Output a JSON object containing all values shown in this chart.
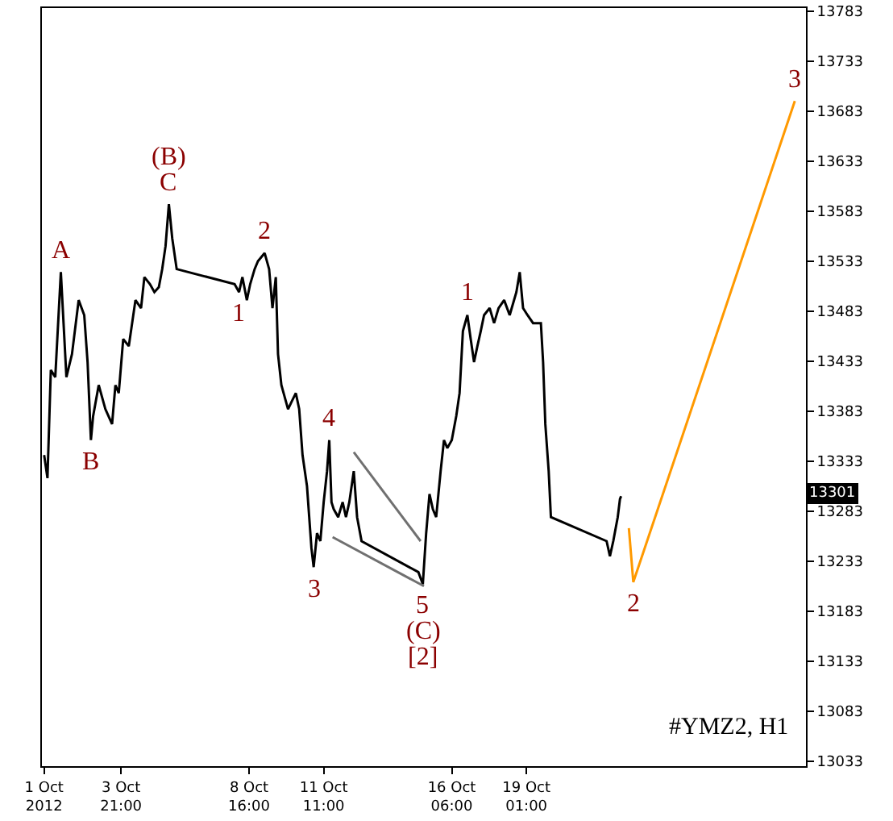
{
  "chart_data": {
    "type": "line",
    "xlim": [
      "2012-09-30T22:00",
      "2012-10-29T12:00"
    ],
    "ylim": [
      13028,
      13786
    ],
    "xticks": [
      {
        "value": "2012-10-01T00:00",
        "label": "1 Oct 2012"
      },
      {
        "value": "2012-10-03T21:00",
        "label": "3 Oct 21:00"
      },
      {
        "value": "2012-10-08T16:00",
        "label": "8 Oct 16:00"
      },
      {
        "value": "2012-10-11T11:00",
        "label": "11 Oct 11:00"
      },
      {
        "value": "2012-10-16T06:00",
        "label": "16 Oct 06:00"
      },
      {
        "value": "2012-10-19T01:00",
        "label": "19 Oct 01:00"
      }
    ],
    "yticks": [
      13033,
      13083,
      13133,
      13183,
      13233,
      13283,
      13333,
      13383,
      13433,
      13483,
      13533,
      13583,
      13633,
      13683,
      13733,
      13783
    ],
    "marker": "none",
    "line_style": "solid",
    "series": [
      {
        "color": "#000000",
        "x": [
          "2012-10-01T00:00",
          "2012-10-01T03:00",
          "2012-10-01T06:00",
          "2012-10-01T10:00",
          "2012-10-01T15:00",
          "2012-10-01T20:00",
          "2012-10-02T01:00",
          "2012-10-02T07:00",
          "2012-10-02T12:00",
          "2012-10-02T15:00",
          "2012-10-02T18:00",
          "2012-10-02T20:00",
          "2012-10-03T01:00",
          "2012-10-03T07:00",
          "2012-10-03T13:00",
          "2012-10-03T16:00",
          "2012-10-03T19:00",
          "2012-10-03T23:00",
          "2012-10-04T04:00",
          "2012-10-04T10:00",
          "2012-10-04T15:00",
          "2012-10-04T18:00",
          "2012-10-04T23:00",
          "2012-10-05T03:00",
          "2012-10-05T07:00",
          "2012-10-05T10:00",
          "2012-10-05T13:00",
          "2012-10-05T16:00",
          "2012-10-05T19:00",
          "2012-10-05T23:00",
          "2012-10-08T03:00",
          "2012-10-08T07:00",
          "2012-10-08T10:00",
          "2012-10-08T14:00",
          "2012-10-08T17:00",
          "2012-10-08T21:00",
          "2012-10-09T00:00",
          "2012-10-09T06:00",
          "2012-10-09T10:00",
          "2012-10-09T13:00",
          "2012-10-09T16:00",
          "2012-10-09T18:00",
          "2012-10-09T21:00",
          "2012-10-10T03:00",
          "2012-10-10T06:00",
          "2012-10-10T10:00",
          "2012-10-10T13:00",
          "2012-10-10T16:00",
          "2012-10-10T20:00",
          "2012-10-11T00:00",
          "2012-10-11T02:00",
          "2012-10-11T05:00",
          "2012-10-11T08:00",
          "2012-10-11T11:00",
          "2012-10-11T14:00",
          "2012-10-11T16:00",
          "2012-10-11T18:00",
          "2012-10-11T20:00",
          "2012-10-12T00:00",
          "2012-10-12T04:00",
          "2012-10-12T07:00",
          "2012-10-12T10:00",
          "2012-10-12T14:00",
          "2012-10-12T17:00",
          "2012-10-12T21:00",
          "2012-10-15T00:00",
          "2012-10-15T04:00",
          "2012-10-15T07:00",
          "2012-10-15T10:00",
          "2012-10-15T13:00",
          "2012-10-15T16:00",
          "2012-10-15T20:00",
          "2012-10-15T23:00",
          "2012-10-16T02:00",
          "2012-10-16T06:00",
          "2012-10-16T10:00",
          "2012-10-16T13:00",
          "2012-10-16T16:00",
          "2012-10-16T20:00",
          "2012-10-16T23:00",
          "2012-10-17T02:00",
          "2012-10-17T05:00",
          "2012-10-17T08:00",
          "2012-10-17T11:00",
          "2012-10-17T16:00",
          "2012-10-17T20:00",
          "2012-10-18T00:00",
          "2012-10-18T05:00",
          "2012-10-18T10:00",
          "2012-10-18T16:00",
          "2012-10-18T19:00",
          "2012-10-18T22:00",
          "2012-10-19T02:00",
          "2012-10-19T07:00",
          "2012-10-19T14:00",
          "2012-10-19T16:00",
          "2012-10-19T18:00",
          "2012-10-19T21:00",
          "2012-10-19T23:00",
          "2012-10-22T01:00",
          "2012-10-22T04:00",
          "2012-10-22T07:00",
          "2012-10-22T11:00",
          "2012-10-22T13:00",
          "2012-10-22T14:00"
        ],
        "values": [
          13339,
          13316,
          13424,
          13417,
          13522,
          13417,
          13440,
          13494,
          13479,
          13432,
          13354,
          13378,
          13409,
          13385,
          13370,
          13409,
          13401,
          13455,
          13448,
          13494,
          13486,
          13517,
          13510,
          13502,
          13507,
          13525,
          13548,
          13590,
          13556,
          13525,
          13510,
          13502,
          13517,
          13494,
          13510,
          13525,
          13533,
          13541,
          13525,
          13486,
          13517,
          13440,
          13409,
          13385,
          13392,
          13401,
          13385,
          13339,
          13308,
          13246,
          13227,
          13261,
          13253,
          13292,
          13323,
          13354,
          13292,
          13285,
          13277,
          13292,
          13277,
          13292,
          13323,
          13277,
          13253,
          13222,
          13210,
          13261,
          13300,
          13285,
          13277,
          13323,
          13354,
          13346,
          13354,
          13378,
          13401,
          13463,
          13479,
          13455,
          13432,
          13448,
          13463,
          13479,
          13486,
          13471,
          13486,
          13494,
          13479,
          13502,
          13522,
          13486,
          13479,
          13471,
          13471,
          13432,
          13370,
          13323,
          13277,
          13253,
          13238,
          13253,
          13277,
          13295,
          13298
        ]
      },
      {
        "color": "#ff9900",
        "x": [
          "2012-10-22T21:00",
          "2012-10-23T01:00",
          "2012-10-29T02:00"
        ],
        "values": [
          13266,
          13212,
          13693
        ]
      },
      {
        "color": "#707070",
        "x": [
          "2012-10-11T19:00",
          "2012-10-15T05:00"
        ],
        "values": [
          13257,
          13208
        ]
      },
      {
        "color": "#707070",
        "x": [
          "2012-10-12T14:00",
          "2012-10-15T02:00"
        ],
        "values": [
          13342,
          13253
        ]
      }
    ],
    "annotations": [
      {
        "text": "A",
        "x": "2012-10-01T15:00",
        "y": 13522
      },
      {
        "text": "B",
        "x": "2012-10-02T18:00",
        "y": 13354
      },
      {
        "text": "C",
        "x": "2012-10-05T16:00",
        "y": 13590
      },
      {
        "text": "(B)",
        "x": "2012-10-05T16:00",
        "y": 13590
      },
      {
        "text": "2",
        "x": "2012-10-09T06:00",
        "y": 13541
      },
      {
        "text": "1",
        "x": "2012-10-08T07:00",
        "y": 13502
      },
      {
        "text": "1",
        "x": "2012-10-16T20:00",
        "y": 13479
      },
      {
        "text": "4",
        "x": "2012-10-11T16:00",
        "y": 13354
      },
      {
        "text": "3",
        "x": "2012-10-11T02:00",
        "y": 13227
      },
      {
        "text": "5",
        "x": "2012-10-15T04:00",
        "y": 13210
      },
      {
        "text": "(C)",
        "x": "2012-10-15T04:00",
        "y": 13210
      },
      {
        "text": "[2]",
        "x": "2012-10-15T04:00",
        "y": 13210
      },
      {
        "text": "2",
        "x": "2012-10-23T01:00",
        "y": 13212
      },
      {
        "text": "3",
        "x": "2012-10-29T02:00",
        "y": 13693
      },
      {
        "text": "13301",
        "y": 13301
      },
      "#YMZ2, H1"
    ]
  }
}
